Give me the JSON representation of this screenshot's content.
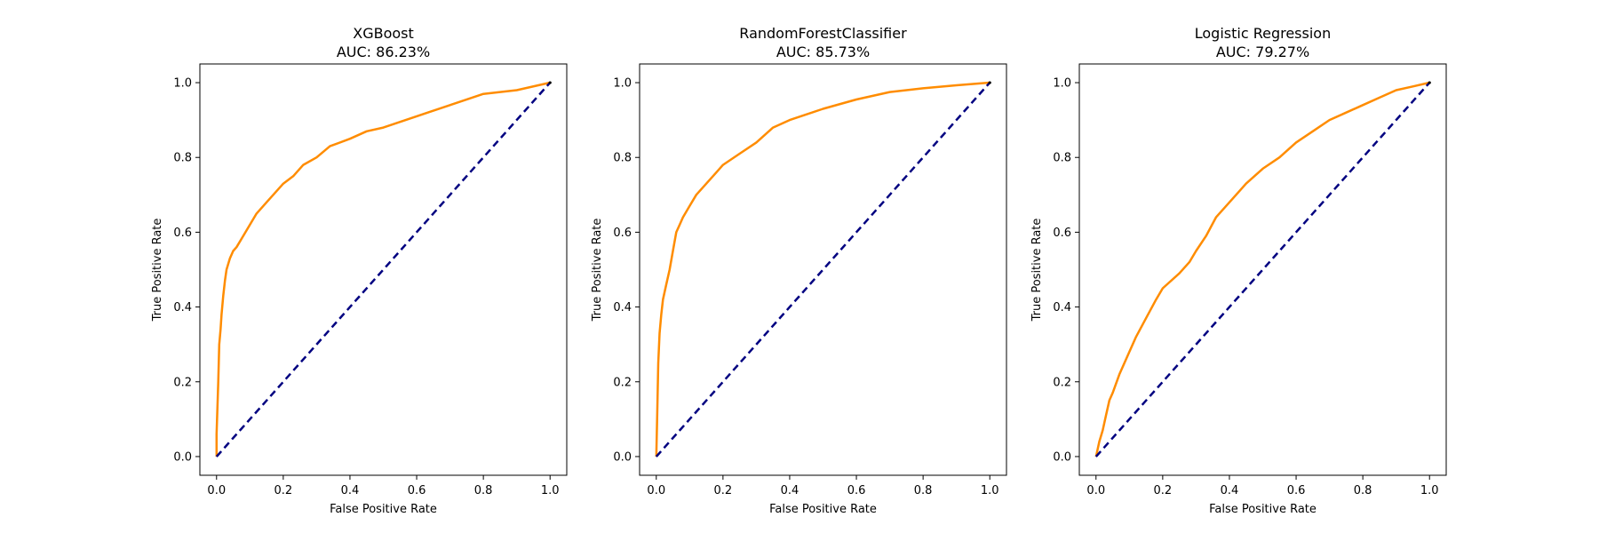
{
  "chart_data": [
    {
      "type": "line",
      "title": "XGBoost",
      "subtitle": "AUC: 86.23%",
      "xlabel": "False Positive Rate",
      "ylabel": "True Positive Rate",
      "xlim": [
        -0.05,
        1.05
      ],
      "ylim": [
        -0.05,
        1.05
      ],
      "xticks": [
        "0.0",
        "0.2",
        "0.4",
        "0.6",
        "0.8",
        "1.0"
      ],
      "yticks": [
        "0.0",
        "0.2",
        "0.4",
        "0.6",
        "0.8",
        "1.0"
      ],
      "grid": false,
      "series": [
        {
          "color": "#ff8c00",
          "style": "solid",
          "x": [
            0,
            0.0,
            0.005,
            0.008,
            0.012,
            0.015,
            0.02,
            0.025,
            0.03,
            0.04,
            0.05,
            0.06,
            0.08,
            0.1,
            0.12,
            0.15,
            0.18,
            0.2,
            0.23,
            0.26,
            0.3,
            0.34,
            0.4,
            0.45,
            0.5,
            0.6,
            0.7,
            0.8,
            0.9,
            1.0
          ],
          "y": [
            0,
            0.06,
            0.2,
            0.3,
            0.34,
            0.38,
            0.43,
            0.47,
            0.5,
            0.53,
            0.55,
            0.56,
            0.59,
            0.62,
            0.65,
            0.68,
            0.71,
            0.73,
            0.75,
            0.78,
            0.8,
            0.83,
            0.85,
            0.87,
            0.88,
            0.91,
            0.94,
            0.97,
            0.98,
            1.0
          ]
        },
        {
          "color": "#000080",
          "style": "dashed",
          "x": [
            0,
            1
          ],
          "y": [
            0,
            1
          ]
        }
      ]
    },
    {
      "type": "line",
      "title": "RandomForestClassifier",
      "subtitle": "AUC: 85.73%",
      "xlabel": "False Positive Rate",
      "ylabel": "True Positive Rate",
      "xlim": [
        -0.05,
        1.05
      ],
      "ylim": [
        -0.05,
        1.05
      ],
      "xticks": [
        "0.0",
        "0.2",
        "0.4",
        "0.6",
        "0.8",
        "1.0"
      ],
      "yticks": [
        "0.0",
        "0.2",
        "0.4",
        "0.6",
        "0.8",
        "1.0"
      ],
      "grid": false,
      "series": [
        {
          "color": "#ff8c00",
          "style": "solid",
          "x": [
            0,
            0.003,
            0.006,
            0.01,
            0.015,
            0.02,
            0.03,
            0.04,
            0.05,
            0.06,
            0.07,
            0.08,
            0.1,
            0.12,
            0.15,
            0.18,
            0.2,
            0.25,
            0.3,
            0.35,
            0.4,
            0.5,
            0.6,
            0.7,
            0.8,
            0.9,
            1.0
          ],
          "y": [
            0,
            0.12,
            0.25,
            0.33,
            0.38,
            0.42,
            0.46,
            0.5,
            0.55,
            0.6,
            0.62,
            0.64,
            0.67,
            0.7,
            0.73,
            0.76,
            0.78,
            0.81,
            0.84,
            0.88,
            0.9,
            0.93,
            0.955,
            0.975,
            0.985,
            0.993,
            1.0
          ]
        },
        {
          "color": "#000080",
          "style": "dashed",
          "x": [
            0,
            1
          ],
          "y": [
            0,
            1
          ]
        }
      ]
    },
    {
      "type": "line",
      "title": "Logistic Regression",
      "subtitle": "AUC: 79.27%",
      "xlabel": "False Positive Rate",
      "ylabel": "True Positive Rate",
      "xlim": [
        -0.05,
        1.05
      ],
      "ylim": [
        -0.05,
        1.05
      ],
      "xticks": [
        "0.0",
        "0.2",
        "0.4",
        "0.6",
        "0.8",
        "1.0"
      ],
      "yticks": [
        "0.0",
        "0.2",
        "0.4",
        "0.6",
        "0.8",
        "1.0"
      ],
      "grid": false,
      "series": [
        {
          "color": "#ff8c00",
          "style": "solid",
          "x": [
            0,
            0.01,
            0.02,
            0.03,
            0.04,
            0.05,
            0.07,
            0.1,
            0.12,
            0.15,
            0.18,
            0.2,
            0.25,
            0.28,
            0.3,
            0.33,
            0.36,
            0.4,
            0.45,
            0.5,
            0.55,
            0.6,
            0.65,
            0.7,
            0.75,
            0.8,
            0.85,
            0.9,
            0.95,
            1.0
          ],
          "y": [
            0,
            0.04,
            0.07,
            0.11,
            0.15,
            0.17,
            0.22,
            0.28,
            0.32,
            0.37,
            0.42,
            0.45,
            0.49,
            0.52,
            0.55,
            0.59,
            0.64,
            0.68,
            0.73,
            0.77,
            0.8,
            0.84,
            0.87,
            0.9,
            0.92,
            0.94,
            0.96,
            0.98,
            0.99,
            1.0
          ]
        },
        {
          "color": "#000080",
          "style": "dashed",
          "x": [
            0,
            1
          ],
          "y": [
            0,
            1
          ]
        }
      ]
    }
  ]
}
